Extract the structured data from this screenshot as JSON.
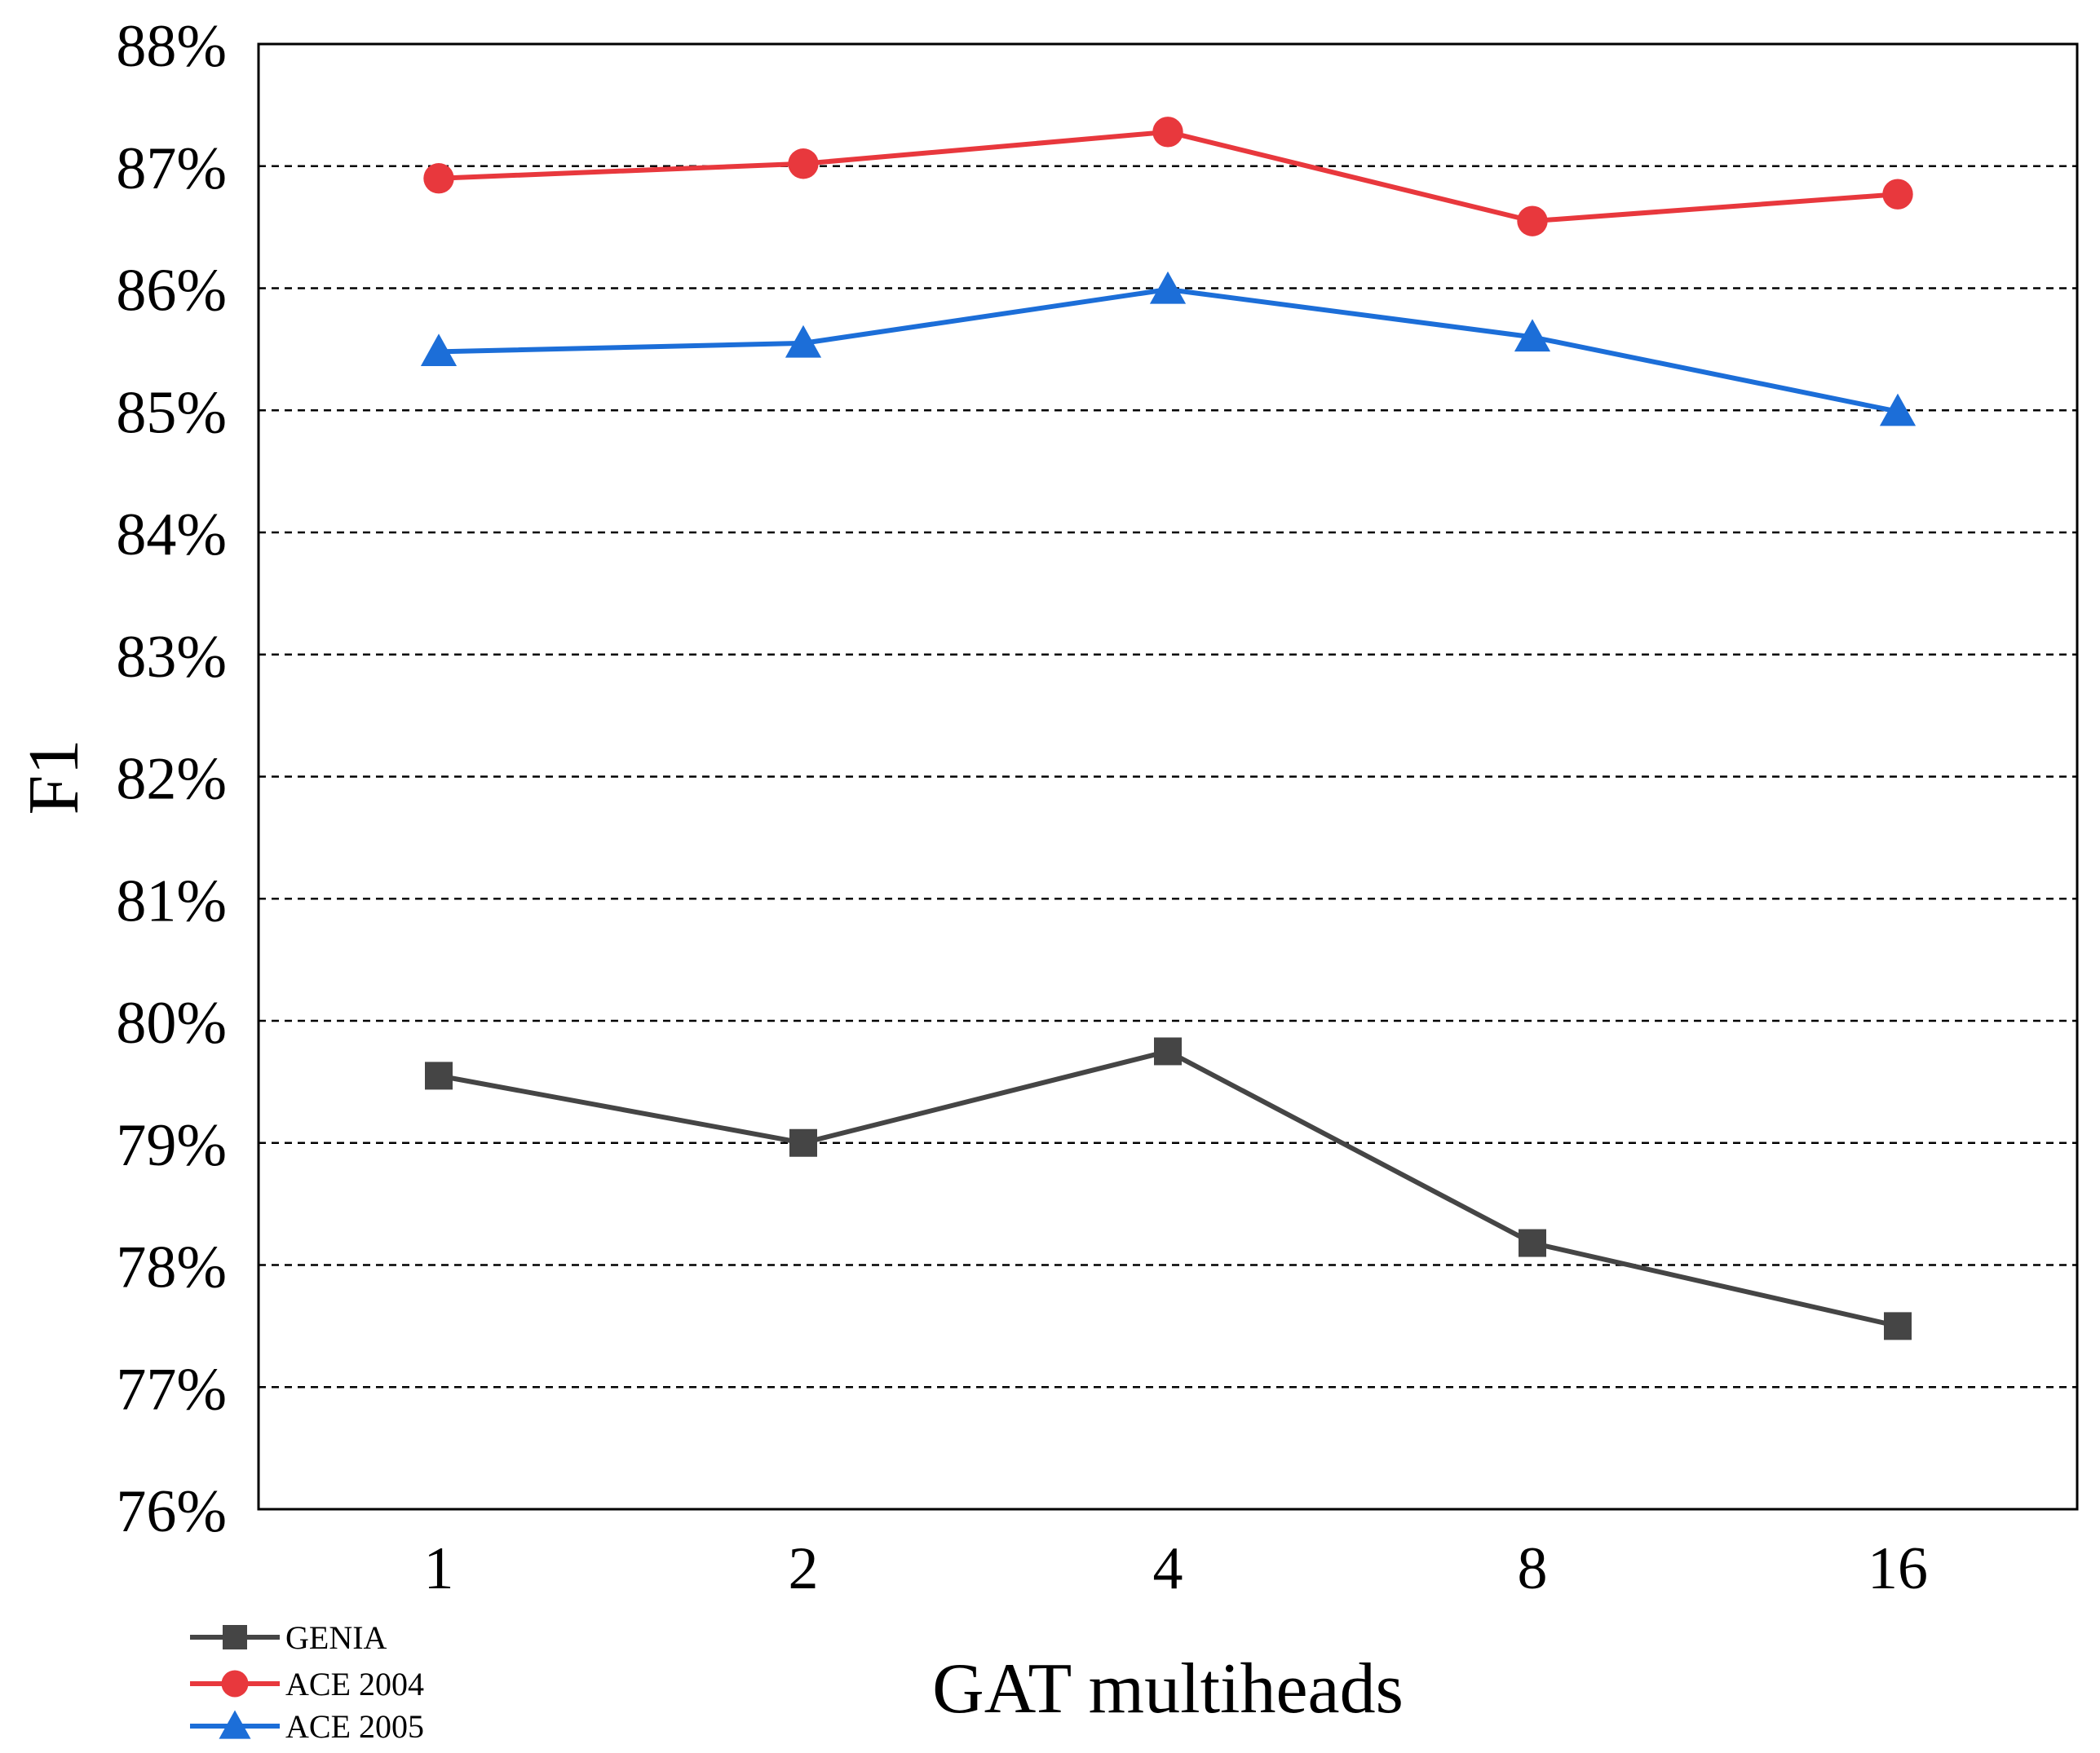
{
  "chart_data": {
    "type": "line",
    "title": "",
    "xlabel": "GAT multiheads",
    "ylabel": "F1",
    "categories": [
      "1",
      "2",
      "4",
      "8",
      "16"
    ],
    "ylim": [
      76,
      88
    ],
    "yticks": [
      76,
      77,
      78,
      79,
      80,
      81,
      82,
      83,
      84,
      85,
      86,
      87,
      88
    ],
    "ytick_suffix": "%",
    "grid": "horizontal-dashed",
    "legend_position": "bottom-left",
    "series": [
      {
        "name": "GENIA",
        "marker": "square",
        "color": "#454545",
        "values": [
          79.55,
          79.0,
          79.75,
          78.18,
          77.5
        ]
      },
      {
        "name": "ACE 2004",
        "marker": "circle",
        "color": "#e8383d",
        "values": [
          86.9,
          87.02,
          87.28,
          86.55,
          86.77
        ]
      },
      {
        "name": "ACE 2005",
        "marker": "triangle",
        "color": "#1c6ed8",
        "values": [
          85.48,
          85.55,
          85.99,
          85.6,
          84.99
        ]
      }
    ]
  }
}
